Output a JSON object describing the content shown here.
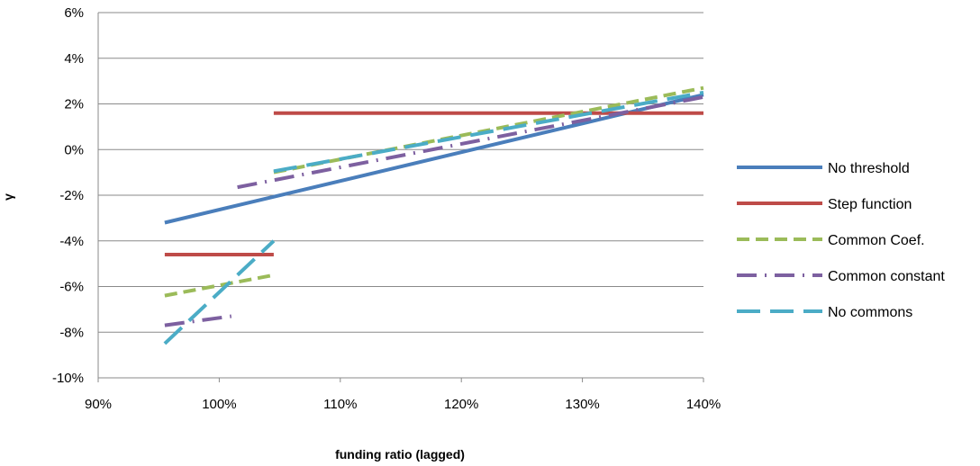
{
  "chart_data": {
    "type": "line",
    "xlabel": "funding ratio (lagged)",
    "ylabel": "γ",
    "xlim": [
      90,
      140
    ],
    "ylim": [
      -10,
      6
    ],
    "x_ticks": [
      "90%",
      "100%",
      "110%",
      "120%",
      "130%",
      "140%"
    ],
    "y_ticks": [
      "6%",
      "4%",
      "2%",
      "0%",
      "-2%",
      "-4%",
      "-6%",
      "-8%",
      "-10%"
    ],
    "grid": "horizontal",
    "legend_position": "right",
    "series": [
      {
        "name": "No threshold",
        "color": "#4a7ebb",
        "style": "solid",
        "segments": [
          [
            [
              95.5,
              -3.2
            ],
            [
              140,
              2.4
            ]
          ]
        ]
      },
      {
        "name": "Step function",
        "color": "#be4b48",
        "style": "solid",
        "segments": [
          [
            [
              95.5,
              -4.6
            ],
            [
              104.5,
              -4.6
            ]
          ],
          [
            [
              104.5,
              1.6
            ],
            [
              140,
              1.6
            ]
          ]
        ]
      },
      {
        "name": "Common Coef.",
        "color": "#9bbb59",
        "style": "dash",
        "segments": [
          [
            [
              95.5,
              -6.4
            ],
            [
              104.5,
              -5.5
            ]
          ],
          [
            [
              104.5,
              -1.0
            ],
            [
              140,
              2.7
            ]
          ]
        ]
      },
      {
        "name": "Common constant",
        "color": "#7d60a0",
        "style": "dashdot",
        "segments": [
          [
            [
              95.5,
              -7.7
            ],
            [
              101,
              -7.3
            ]
          ],
          [
            [
              101.5,
              -1.65
            ],
            [
              140,
              2.3
            ]
          ]
        ]
      },
      {
        "name": "No commons",
        "color": "#4bacc6",
        "style": "longdash",
        "segments": [
          [
            [
              95.5,
              -8.5
            ],
            [
              104.5,
              -4.0
            ]
          ],
          [
            [
              104.5,
              -0.95
            ],
            [
              140,
              2.5
            ]
          ]
        ]
      }
    ]
  }
}
